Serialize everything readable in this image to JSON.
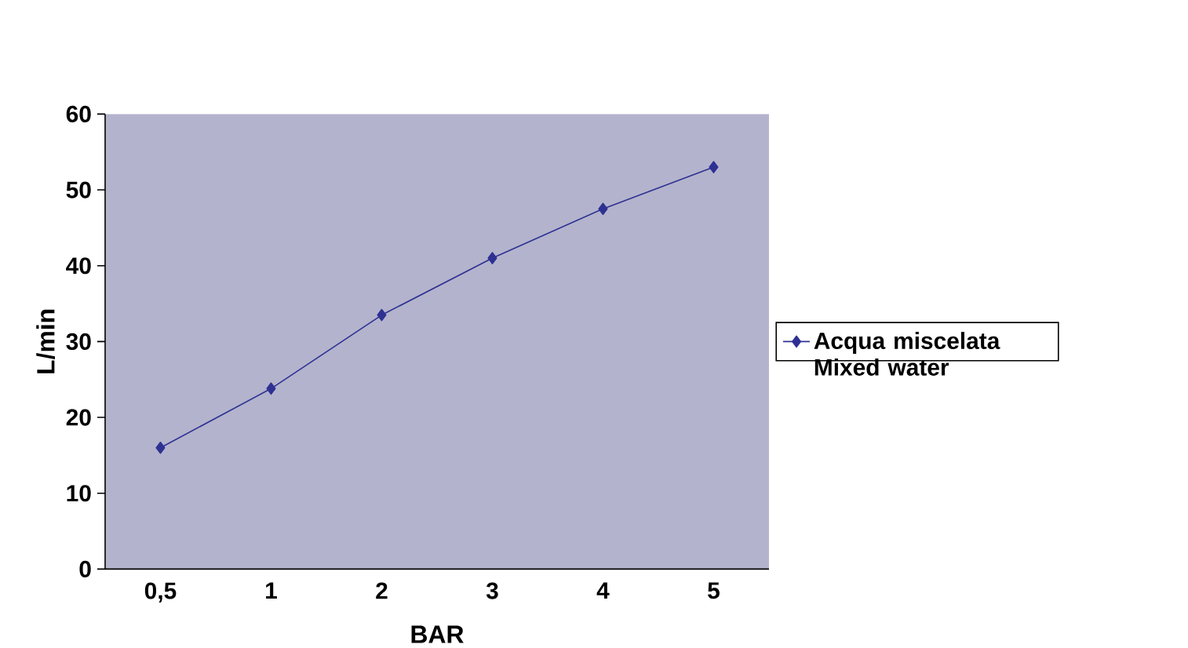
{
  "chart_data": {
    "type": "line",
    "xlabel": "BAR",
    "ylabel": "L/min",
    "categories": [
      "0,5",
      "1",
      "2",
      "3",
      "4",
      "5"
    ],
    "series": [
      {
        "name": "Acqua miscelata Mixed water",
        "color": "#2e3192",
        "values": [
          16,
          23.8,
          33.5,
          41,
          47.5,
          53
        ]
      }
    ],
    "ylim": [
      0,
      60
    ],
    "yticks": [
      0,
      10,
      20,
      30,
      40,
      50,
      60
    ],
    "marker": "diamond",
    "legend": "right",
    "grid": false
  }
}
